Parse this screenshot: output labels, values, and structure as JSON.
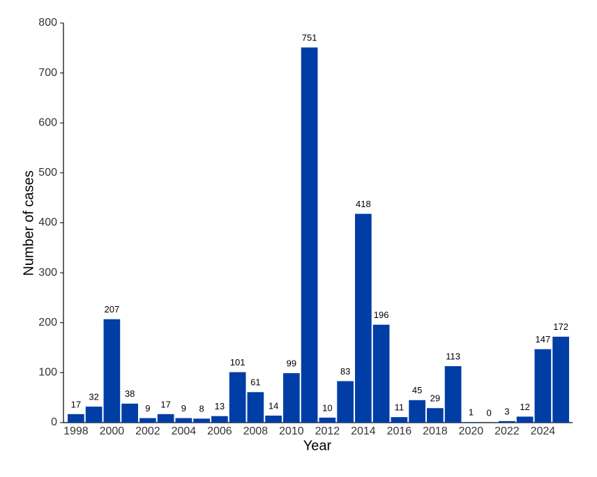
{
  "chart_data": {
    "type": "bar",
    "x_label": "Year",
    "y_label": "Number of cases",
    "categories": [
      "1998",
      null,
      "2000",
      null,
      "2002",
      null,
      "2004",
      null,
      "2006",
      null,
      "2008",
      null,
      "2010",
      null,
      "2012",
      null,
      "2014",
      null,
      "2016",
      null,
      "2018",
      null,
      "2020",
      null,
      "2022",
      null,
      "2024",
      null
    ],
    "values": [
      17,
      32,
      207,
      38,
      9,
      17,
      9,
      8,
      13,
      101,
      61,
      14,
      99,
      751,
      10,
      83,
      418,
      196,
      11,
      45,
      29,
      113,
      1,
      0,
      3,
      12,
      147,
      172
    ],
    "color": "#003da5",
    "ylim": [
      0,
      800
    ],
    "yticks": [
      0,
      100,
      200,
      300,
      400,
      500,
      600,
      700,
      800
    ],
    "grid": false
  }
}
